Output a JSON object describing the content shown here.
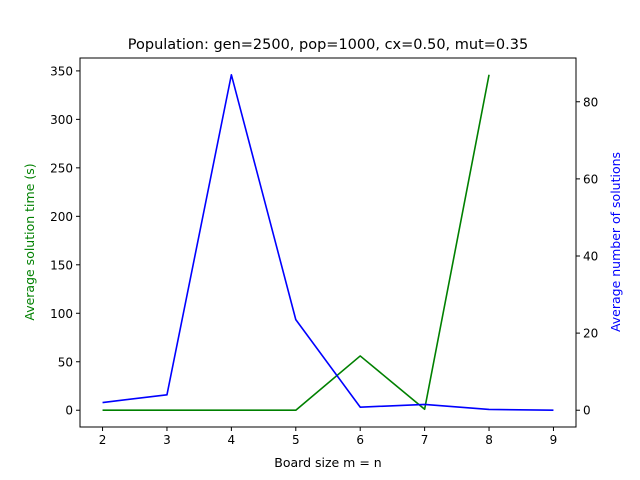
{
  "chart_data": {
    "type": "line",
    "title": "Population: gen=2500, pop=1000, cx=0.50, mut=0.35",
    "xlabel": "Board size m = n",
    "ylabel_left": "Average solution time (s)",
    "ylabel_right": "Average number of solutions",
    "x": [
      2,
      3,
      4,
      5,
      6,
      7,
      8,
      9
    ],
    "xlim": [
      1.65,
      9.35
    ],
    "ylim_left": [
      -17.3,
      363.3
    ],
    "ylim_right": [
      -4.35,
      91.35
    ],
    "yticks_left": [
      0,
      50,
      100,
      150,
      200,
      250,
      300,
      350
    ],
    "yticks_right": [
      0,
      20,
      40,
      60,
      80
    ],
    "grid": false,
    "series": [
      {
        "axis": "left",
        "color": "#008000",
        "x": [
          2,
          3,
          4,
          5,
          6,
          7,
          8
        ],
        "values": [
          0,
          0,
          0,
          0,
          56,
          1,
          346
        ]
      },
      {
        "axis": "right",
        "color": "#0000ff",
        "x": [
          2,
          3,
          4,
          5,
          6,
          7,
          8,
          9
        ],
        "values": [
          2,
          4,
          87,
          23.5,
          0.8,
          1.5,
          0.2,
          0
        ]
      }
    ],
    "label_colors": {
      "left": "#008000",
      "right": "#0000ff"
    }
  }
}
